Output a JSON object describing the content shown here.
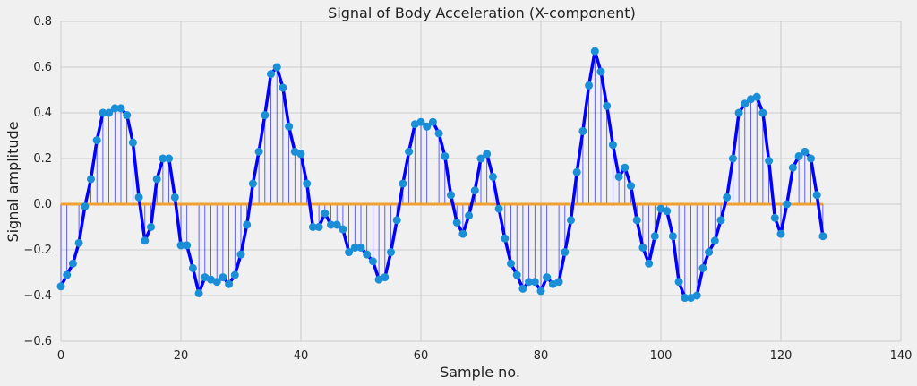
{
  "chart_data": {
    "type": "line",
    "title": "Signal of Body Acceleration (X-component)",
    "xlabel": "Sample no.",
    "ylabel": "Signal amplitude",
    "xlim": [
      0,
      140
    ],
    "ylim": [
      -0.6,
      0.8
    ],
    "xticks": [
      0,
      20,
      40,
      60,
      80,
      100,
      120,
      140
    ],
    "yticks": [
      -0.6,
      -0.4,
      -0.2,
      0.0,
      0.2,
      0.4,
      0.6,
      0.8
    ],
    "xtick_labels": [
      "0",
      "20",
      "40",
      "60",
      "80",
      "100",
      "120",
      "140"
    ],
    "ytick_labels": [
      "−0.6",
      "−0.4",
      "−0.2",
      "0.0",
      "0.2",
      "0.4",
      "0.6",
      "0.8"
    ],
    "grid": true,
    "colors": {
      "line": "#0000ff",
      "markers": "#1a8fd8",
      "stems": "#0000ff",
      "baseline": "#f0a030",
      "grid": "#cbcbcb",
      "background": "#f0f0f0"
    },
    "series": [
      {
        "style": "line+stem",
        "x": [
          0,
          1,
          2,
          3,
          4,
          5,
          6,
          7,
          8,
          9,
          10,
          11,
          12,
          13,
          14,
          15,
          16,
          17,
          18,
          19,
          20,
          21,
          22,
          23,
          24,
          25,
          26,
          27,
          28,
          29,
          30,
          31,
          32,
          33,
          34,
          35,
          36,
          37,
          38,
          39,
          40,
          41,
          42,
          43,
          44,
          45,
          46,
          47,
          48,
          49,
          50,
          51,
          52,
          53,
          54,
          55,
          56,
          57,
          58,
          59,
          60,
          61,
          62,
          63,
          64,
          65,
          66,
          67,
          68,
          69,
          70,
          71,
          72,
          73,
          74,
          75,
          76,
          77,
          78,
          79,
          80,
          81,
          82,
          83,
          84,
          85,
          86,
          87,
          88,
          89,
          90,
          91,
          92,
          93,
          94,
          95,
          96,
          97,
          98,
          99,
          100,
          101,
          102,
          103,
          104,
          105,
          106,
          107,
          108,
          109,
          110,
          111,
          112,
          113,
          114,
          115,
          116,
          117,
          118,
          119,
          120,
          121,
          122,
          123,
          124,
          125,
          126,
          127
        ],
        "y": [
          -0.36,
          -0.31,
          -0.26,
          -0.17,
          -0.01,
          0.11,
          0.28,
          0.4,
          0.4,
          0.42,
          0.42,
          0.39,
          0.27,
          0.03,
          -0.16,
          -0.1,
          0.11,
          0.2,
          0.2,
          0.03,
          -0.18,
          -0.18,
          -0.28,
          -0.39,
          -0.32,
          -0.33,
          -0.34,
          -0.32,
          -0.35,
          -0.31,
          -0.22,
          -0.09,
          0.09,
          0.23,
          0.39,
          0.57,
          0.6,
          0.51,
          0.34,
          0.23,
          0.22,
          0.09,
          -0.1,
          -0.1,
          -0.04,
          -0.09,
          -0.09,
          -0.11,
          -0.21,
          -0.19,
          -0.19,
          -0.22,
          -0.25,
          -0.33,
          -0.32,
          -0.21,
          -0.07,
          0.09,
          0.23,
          0.35,
          0.36,
          0.34,
          0.36,
          0.31,
          0.21,
          0.04,
          -0.08,
          -0.13,
          -0.05,
          0.06,
          0.2,
          0.22,
          0.12,
          -0.02,
          -0.15,
          -0.26,
          -0.31,
          -0.37,
          -0.34,
          -0.34,
          -0.38,
          -0.32,
          -0.35,
          -0.34,
          -0.21,
          -0.07,
          0.14,
          0.32,
          0.52,
          0.67,
          0.58,
          0.43,
          0.26,
          0.12,
          0.16,
          0.08,
          -0.07,
          -0.19,
          -0.26,
          -0.14,
          -0.02,
          -0.03,
          -0.14,
          -0.34,
          -0.41,
          -0.41,
          -0.4,
          -0.28,
          -0.21,
          -0.16,
          -0.07,
          0.03,
          0.2,
          0.4,
          0.44,
          0.46,
          0.47,
          0.4,
          0.19,
          -0.06,
          -0.13,
          0.0,
          0.16,
          0.21,
          0.23,
          0.2,
          0.04,
          -0.14
        ]
      }
    ]
  }
}
